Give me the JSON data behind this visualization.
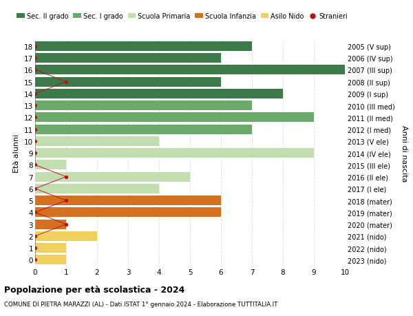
{
  "ages": [
    18,
    17,
    16,
    15,
    14,
    13,
    12,
    11,
    10,
    9,
    8,
    7,
    6,
    5,
    4,
    3,
    2,
    1,
    0
  ],
  "right_labels": [
    "2005 (V sup)",
    "2006 (IV sup)",
    "2007 (III sup)",
    "2008 (II sup)",
    "2009 (I sup)",
    "2010 (III med)",
    "2011 (II med)",
    "2012 (I med)",
    "2013 (V ele)",
    "2014 (IV ele)",
    "2015 (III ele)",
    "2016 (II ele)",
    "2017 (I ele)",
    "2018 (mater)",
    "2019 (mater)",
    "2020 (mater)",
    "2021 (nido)",
    "2022 (nido)",
    "2023 (nido)"
  ],
  "bar_values": [
    7,
    6,
    10,
    6,
    8,
    7,
    9,
    7,
    4,
    9,
    1,
    5,
    4,
    6,
    6,
    1,
    2,
    1,
    1
  ],
  "bar_colors": [
    "#3d7a4a",
    "#3d7a4a",
    "#3d7a4a",
    "#3d7a4a",
    "#3d7a4a",
    "#6aaa6a",
    "#6aaa6a",
    "#6aaa6a",
    "#c2ddb0",
    "#c2ddb0",
    "#c2ddb0",
    "#c2ddb0",
    "#c2ddb0",
    "#d4701e",
    "#d4701e",
    "#d4701e",
    "#f0d060",
    "#f0d060",
    "#f0d060"
  ],
  "stranieri_x": [
    0,
    0,
    0,
    1,
    0,
    0,
    0,
    0,
    0,
    0,
    0,
    1,
    0,
    1,
    0,
    1,
    0,
    0,
    0
  ],
  "legend_labels": [
    "Sec. II grado",
    "Sec. I grado",
    "Scuola Primaria",
    "Scuola Infanzia",
    "Asilo Nido",
    "Stranieri"
  ],
  "legend_colors": [
    "#3d7a4a",
    "#6aaa6a",
    "#c2ddb0",
    "#d4701e",
    "#f0d060",
    "#bb1111"
  ],
  "title": "Popolazione per età scolastica - 2024",
  "subtitle": "COMUNE DI PIETRA MARAZZI (AL) - Dati ISTAT 1° gennaio 2024 - Elaborazione TUTTITALIA.IT",
  "ylabel": "Età alunni",
  "right_ylabel": "Anni di nascita",
  "xlim": [
    0,
    10
  ],
  "xticks": [
    0,
    1,
    2,
    3,
    4,
    5,
    6,
    7,
    8,
    9,
    10
  ],
  "bg_color": "#ffffff",
  "grid_color": "#dddddd",
  "fig_width": 6.0,
  "fig_height": 4.6,
  "dpi": 100
}
